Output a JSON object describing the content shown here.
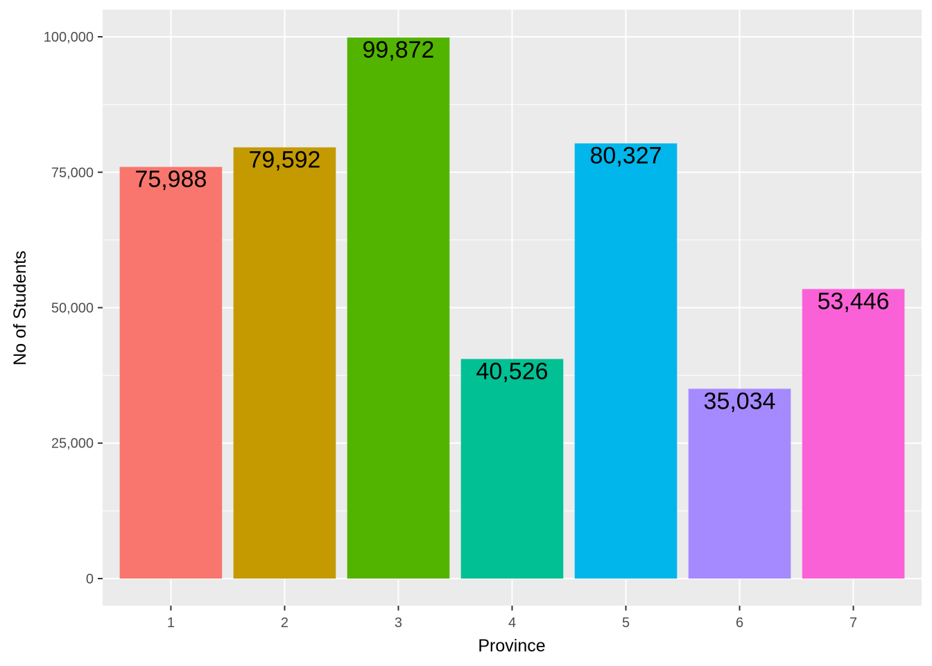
{
  "chart_data": {
    "type": "bar",
    "xlabel": "Province",
    "ylabel": "No of Students",
    "categories": [
      "1",
      "2",
      "3",
      "4",
      "5",
      "6",
      "7"
    ],
    "values": [
      75988,
      79592,
      99872,
      40526,
      80327,
      35034,
      53446
    ],
    "value_labels": [
      "75,988",
      "79,592",
      "99,872",
      "40,526",
      "80,327",
      "35,034",
      "53,446"
    ],
    "colors": [
      "#F8766D",
      "#C49A00",
      "#53B400",
      "#00C094",
      "#00B6EB",
      "#A58AFF",
      "#FB61D7"
    ],
    "ylim": [
      -5000,
      105000
    ],
    "y_ticks": [
      0,
      25000,
      50000,
      75000,
      100000
    ],
    "y_tick_labels": [
      "0",
      "25,000",
      "50,000",
      "75,000",
      "100,000"
    ],
    "grid": true,
    "legend": "none",
    "panel_background": "#EBEBEB",
    "gridline_color": "#FFFFFF"
  }
}
